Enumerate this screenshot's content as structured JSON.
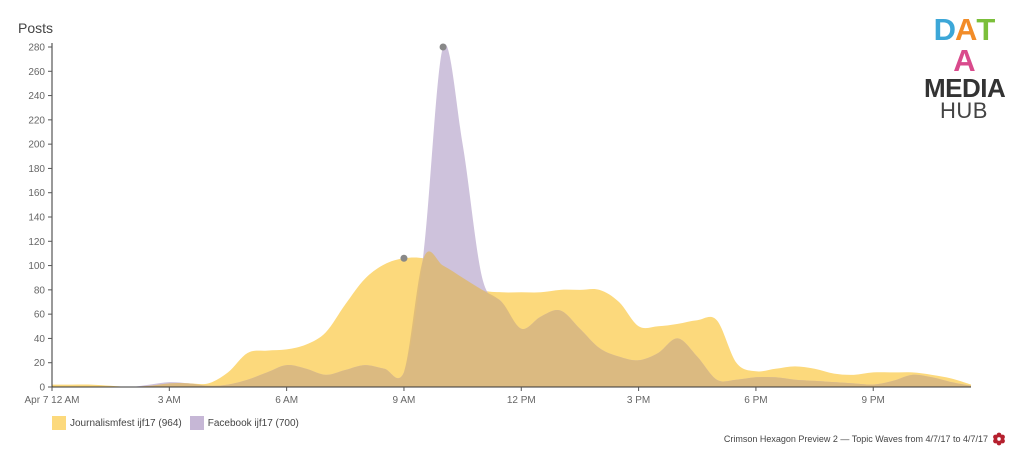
{
  "chart_data": {
    "type": "area",
    "ylabel": "Posts",
    "ylim": [
      0,
      280
    ],
    "yticks": [
      0,
      20,
      40,
      60,
      80,
      100,
      120,
      140,
      160,
      180,
      200,
      220,
      240,
      260,
      280
    ],
    "xlim": [
      0,
      23.5
    ],
    "x_ticks": [
      {
        "x": 0,
        "label": "Apr 7 12 AM"
      },
      {
        "x": 3,
        "label": "3 AM"
      },
      {
        "x": 6,
        "label": "6 AM"
      },
      {
        "x": 9,
        "label": "9 AM"
      },
      {
        "x": 12,
        "label": "12 PM"
      },
      {
        "x": 15,
        "label": "3 PM"
      },
      {
        "x": 18,
        "label": "6 PM"
      },
      {
        "x": 21,
        "label": "9 PM"
      }
    ],
    "series": [
      {
        "name": "Journalismfest ijf17 (964)",
        "color": "#FCD97C",
        "x": [
          0,
          0.5,
          1,
          1.5,
          2,
          2.5,
          3,
          3.5,
          4,
          4.5,
          5,
          5.5,
          6,
          6.5,
          7,
          7.5,
          8,
          8.5,
          9,
          9.5,
          10,
          10.5,
          11,
          11.5,
          12,
          12.5,
          13,
          13.5,
          14,
          14.5,
          15,
          15.5,
          16,
          16.5,
          17,
          17.5,
          18,
          18.5,
          19,
          19.5,
          20,
          20.5,
          21,
          21.5,
          22,
          22.5,
          23,
          23.5
        ],
        "values": [
          2,
          2,
          2,
          1,
          0,
          1,
          3,
          3,
          3,
          12,
          28,
          30,
          31,
          35,
          45,
          68,
          89,
          101,
          106,
          106,
          100,
          90,
          80,
          78,
          78,
          78,
          80,
          80,
          80,
          70,
          50,
          50,
          52,
          55,
          55,
          20,
          13,
          15,
          17,
          15,
          11,
          10,
          12,
          12,
          12,
          10,
          7,
          2
        ]
      },
      {
        "name": "Facebook ijf17 (700)",
        "color": "#C6B7D6",
        "x": [
          0,
          0.5,
          1,
          1.5,
          2,
          2.5,
          3,
          3.5,
          4,
          4.5,
          5,
          5.5,
          6,
          6.5,
          7,
          7.5,
          8,
          8.5,
          9,
          9.5,
          10,
          10.5,
          11,
          11.5,
          12,
          12.5,
          13,
          13.5,
          14,
          14.5,
          15,
          15.5,
          16,
          16.5,
          17,
          17.5,
          18,
          18.5,
          19,
          19.5,
          20,
          20.5,
          21,
          21.5,
          22,
          22.5,
          23,
          23.5
        ],
        "values": [
          0,
          0,
          0,
          0,
          0,
          2,
          4,
          3,
          1,
          2,
          6,
          12,
          18,
          15,
          10,
          14,
          18,
          15,
          12,
          110,
          280,
          200,
          90,
          70,
          48,
          58,
          63,
          48,
          32,
          25,
          22,
          28,
          40,
          25,
          6,
          6,
          8,
          8,
          6,
          5,
          4,
          3,
          2,
          5,
          10,
          8,
          4,
          1
        ]
      }
    ],
    "markers": [
      {
        "x": 9,
        "y": 106
      },
      {
        "x": 10,
        "y": 280
      }
    ],
    "grid": false,
    "legend_position": "bottom-left"
  },
  "logo": {
    "line1": "DATA",
    "line2": "MEDIA",
    "line3": "HUB"
  },
  "footer": {
    "text": "Crimson Hexagon Preview 2 — Topic Waves from 4/7/17 to 4/7/17"
  }
}
